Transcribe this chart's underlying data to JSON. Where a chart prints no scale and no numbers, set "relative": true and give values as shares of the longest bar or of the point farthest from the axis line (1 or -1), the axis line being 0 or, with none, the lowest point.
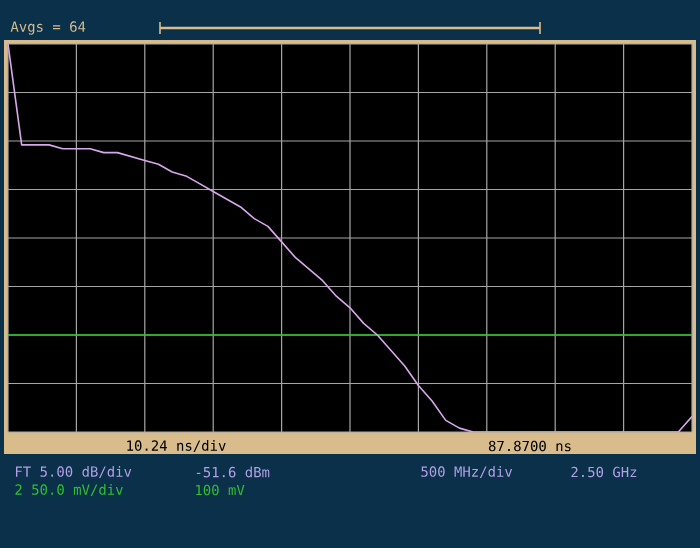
{
  "chart_data": {
    "type": "line",
    "relative": true,
    "grid": true,
    "categories": [
      null,
      null,
      null,
      null,
      null,
      null,
      null,
      null,
      null,
      null,
      null,
      null,
      null,
      null,
      null,
      null,
      null,
      null,
      null,
      null,
      null,
      null,
      null,
      null,
      null,
      null,
      null,
      null,
      null,
      null,
      null,
      null,
      null,
      null,
      null,
      null,
      null,
      null,
      null,
      null,
      null,
      null,
      null,
      null,
      null,
      null,
      null,
      null,
      null,
      null,
      null
    ],
    "series": [
      {
        "color": "#d8a8ec",
        "values": [
          1,
          0.74,
          0.74,
          0.74,
          0.73,
          0.73,
          0.73,
          0.72,
          0.72,
          0.71,
          0.7,
          0.69,
          0.67,
          0.66,
          0.64,
          0.62,
          0.6,
          0.58,
          0.55,
          0.53,
          0.49,
          0.45,
          0.42,
          0.39,
          0.35,
          0.32,
          0.28,
          0.25,
          0.21,
          0.17,
          0.12,
          0.08,
          0.03,
          0.01,
          0,
          0,
          0,
          0,
          0,
          0,
          0,
          0,
          0,
          0,
          0,
          0,
          0,
          0,
          0,
          0,
          0.04
        ]
      },
      {
        "color": "#22c822",
        "values": [
          0.25,
          0.25,
          0.25,
          0.25,
          0.25,
          0.25,
          0.25,
          0.25,
          0.25,
          0.25,
          0.25,
          0.25,
          0.25,
          0.25,
          0.25,
          0.25,
          0.25,
          0.25,
          0.25,
          0.25,
          0.25,
          0.25,
          0.25,
          0.25,
          0.25,
          0.25,
          0.25,
          0.25,
          0.25,
          0.25,
          0.25,
          0.25,
          0.25,
          0.25,
          0.25,
          0.25,
          0.25,
          0.25,
          0.25,
          0.25,
          0.25,
          0.25,
          0.25,
          0.25,
          0.25,
          0.25,
          0.25,
          0.25,
          0.25,
          0.25,
          0.25
        ]
      }
    ],
    "annotations": [
      "Avgs = 64",
      "10.24 ns/div",
      "87.8700 ns",
      "FT 5.00 dB/div",
      "-51.6 dBm",
      "500 MHz/div",
      "2.50 GHz",
      "2 50.0 mV/div",
      "100 mV"
    ]
  }
}
